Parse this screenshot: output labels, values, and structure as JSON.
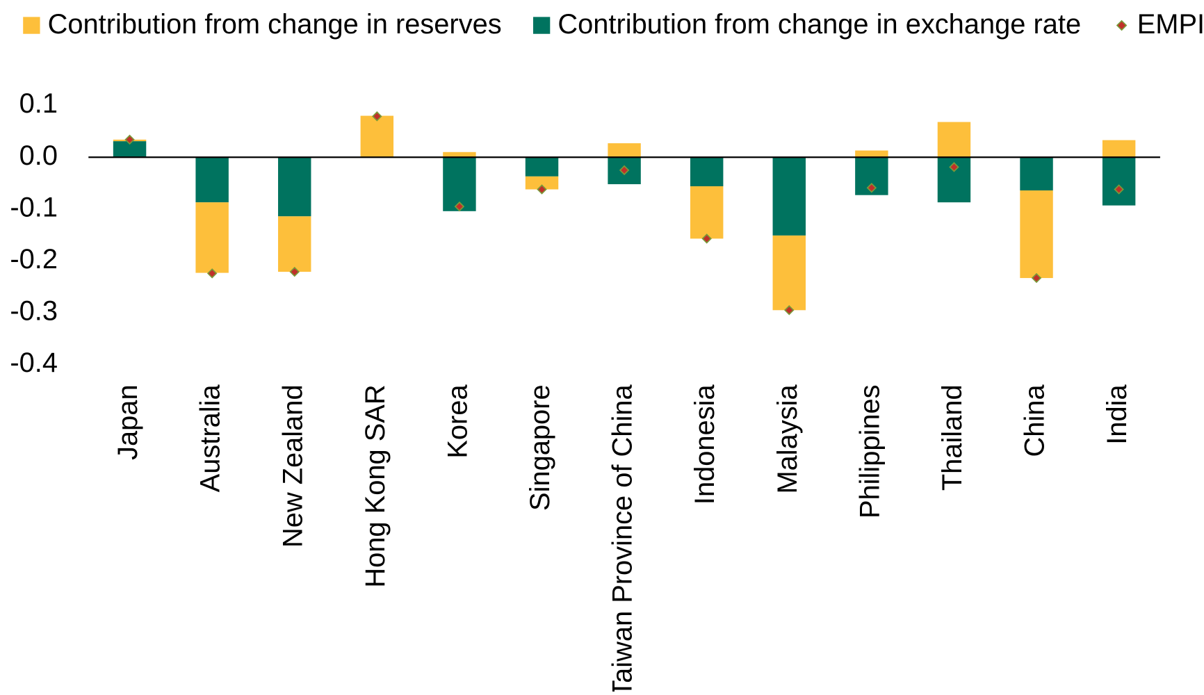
{
  "chart_data": {
    "type": "bar",
    "stacked": true,
    "categories": [
      "Japan",
      "Australia",
      "New Zealand",
      "Hong Kong SAR",
      "Korea",
      "Singapore",
      "Taiwan Province of China",
      "Indonesia",
      "Malaysia",
      "Philippines",
      "Thailand",
      "China",
      "India"
    ],
    "series": [
      {
        "name": "Contribution from change in reserves",
        "color": "#fdbf3b",
        "values": [
          0.003,
          -0.136,
          -0.107,
          0.08,
          0.01,
          -0.025,
          0.027,
          -0.101,
          -0.144,
          0.013,
          0.068,
          -0.169,
          0.033
        ]
      },
      {
        "name": "Contribution from change in exchange rate",
        "color": "#00735f",
        "values": [
          0.031,
          -0.087,
          -0.114,
          0,
          -0.104,
          -0.037,
          -0.052,
          -0.056,
          -0.151,
          -0.073,
          -0.087,
          -0.064,
          -0.093
        ]
      },
      {
        "name": "EMPI",
        "type": "scatter",
        "color": "#c0302a",
        "values": [
          0.034,
          -0.224,
          -0.221,
          0.079,
          -0.095,
          -0.062,
          -0.025,
          -0.157,
          -0.295,
          -0.059,
          -0.019,
          -0.233,
          -0.062
        ]
      }
    ],
    "ylim": [
      -0.4,
      0.1
    ],
    "yticks": [
      {
        "value": 0.1,
        "label": "0.1"
      },
      {
        "value": 0,
        "label": "0.0"
      },
      {
        "value": -0.1,
        "label": "-0.1"
      },
      {
        "value": -0.2,
        "label": "-0.2"
      },
      {
        "value": -0.3,
        "label": "-0.3"
      },
      {
        "value": -0.4,
        "label": "-0.4"
      }
    ],
    "legend": "top"
  }
}
